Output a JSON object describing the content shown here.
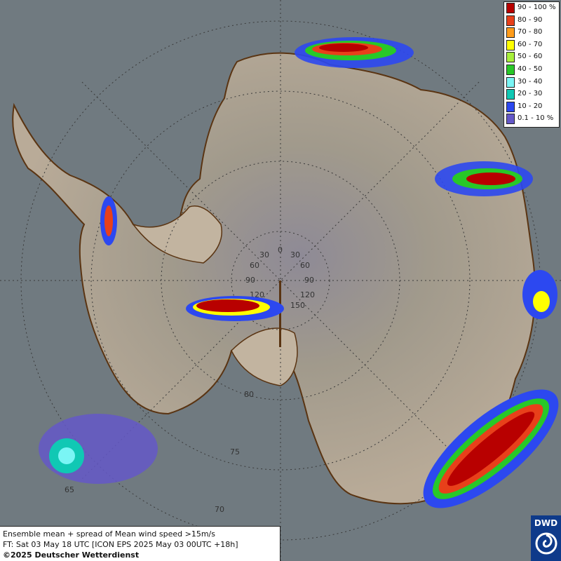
{
  "map": {
    "source": "DWD",
    "background_color": "#707a80",
    "ice_color": "#b9ab98",
    "coast_color": "#5a3412",
    "grid_color": "#3a3a3a",
    "grid_labels_lon": [
      "0",
      "30",
      "30",
      "60",
      "60",
      "90",
      "90",
      "120",
      "120",
      "150",
      "150"
    ],
    "grid_labels_lat": [
      "80",
      "75",
      "70",
      "65"
    ]
  },
  "legend": {
    "items": [
      {
        "label": "90 - 100 %",
        "color": "#b80000"
      },
      {
        "label": "80 - 90",
        "color": "#e8401a"
      },
      {
        "label": "70 - 80",
        "color": "#ff9c1a"
      },
      {
        "label": "60 - 70",
        "color": "#ffff00"
      },
      {
        "label": "50 - 60",
        "color": "#a8f03c"
      },
      {
        "label": "40 - 50",
        "color": "#28c828"
      },
      {
        "label": "30 - 40",
        "color": "#7af5f5"
      },
      {
        "label": "20 - 30",
        "color": "#10c8b4"
      },
      {
        "label": "10 - 20",
        "color": "#2c48f0"
      },
      {
        "label": "0.1 - 10 %",
        "color": "#6458c8"
      }
    ]
  },
  "info": {
    "line1": "Ensemble mean + spread of Mean wind speed >15m/s",
    "line2": "FT: Sat 03 May 18 UTC [ICON EPS 2025 May 03 00UTC +18h]",
    "line3": "©2025 Deutscher Wetterdienst"
  },
  "logo": {
    "text": "DWD"
  }
}
